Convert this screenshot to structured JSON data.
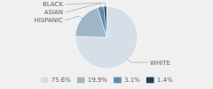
{
  "chart_data": {
    "type": "pie",
    "categories": [
      "WHITE",
      "HISPANIC",
      "ASIAN",
      "BLACK"
    ],
    "values": [
      75.6,
      19.9,
      3.1,
      1.4
    ],
    "value_labels": [
      "75.6%",
      "19.9%",
      "3.1%",
      "1.4%"
    ],
    "colors": [
      "#d6dfe8",
      "#9fb5c8",
      "#5b8aad",
      "#1e3d56"
    ],
    "legend": "bottom"
  }
}
